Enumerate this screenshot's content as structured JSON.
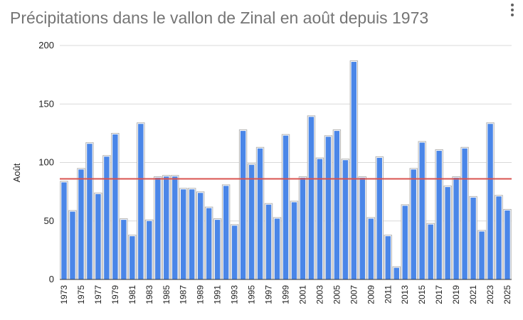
{
  "header": {
    "title": "Précipitations dans le vallon de Zinal en août depuis 1973",
    "menu_icon": "more-vert-icon"
  },
  "colors": {
    "bar_fill": "#4a86e8",
    "bar_outline": "#b3b3b3",
    "mean_line": "#d9534f",
    "gridline": "#d9d9d9",
    "axis": "#333333"
  },
  "chart_data": {
    "type": "bar",
    "title": "Précipitations dans le vallon de Zinal en août depuis 1973",
    "xlabel": "",
    "ylabel": "Août",
    "ylim": [
      0,
      200
    ],
    "yticks": [
      "0",
      "50",
      "100",
      "150",
      "200"
    ],
    "grid": true,
    "categories": [
      "1973",
      "1974",
      "1975",
      "1976",
      "1977",
      "1978",
      "1979",
      "1980",
      "1981",
      "1982",
      "1983",
      "1984",
      "1985",
      "1986",
      "1987",
      "1988",
      "1989",
      "1990",
      "1991",
      "1992",
      "1993",
      "1994",
      "1995",
      "1996",
      "1997",
      "1998",
      "1999",
      "2000",
      "2001",
      "2002",
      "2003",
      "2004",
      "2005",
      "2006",
      "2007",
      "2008",
      "2009",
      "2010",
      "2011",
      "2012",
      "2013",
      "2014",
      "2015",
      "2016",
      "2017",
      "2018",
      "2019",
      "2020",
      "2021",
      "2022",
      "2023",
      "2024",
      "2025"
    ],
    "tick_labels": [
      "1973",
      "1975",
      "1977",
      "1979",
      "1981",
      "1983",
      "1985",
      "1987",
      "1989",
      "1991",
      "1993",
      "1995",
      "1997",
      "1999",
      "2001",
      "2003",
      "2005",
      "2007",
      "2009",
      "2011",
      "2013",
      "2015",
      "2017",
      "2019",
      "2021",
      "2023",
      "2025"
    ],
    "values": [
      83,
      58,
      94,
      116,
      73,
      105,
      124,
      51,
      37,
      133,
      50,
      87,
      88,
      88,
      77,
      77,
      74,
      61,
      51,
      80,
      46,
      127,
      98,
      112,
      64,
      52,
      123,
      66,
      87,
      139,
      103,
      122,
      127,
      102,
      186,
      87,
      52,
      104,
      37,
      10,
      63,
      94,
      117,
      47,
      110,
      79,
      87,
      112,
      70,
      41,
      133,
      71,
      59
    ],
    "reference_line": 86
  }
}
